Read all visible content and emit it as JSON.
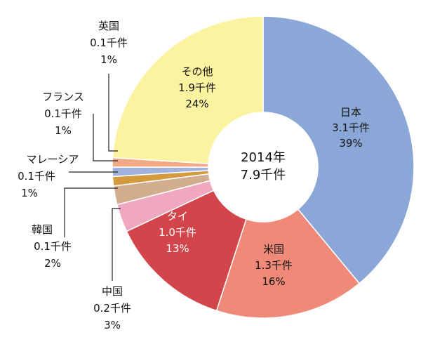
{
  "chart_data": {
    "type": "pie",
    "style": "donut",
    "center_label": {
      "year": "2014年",
      "total": "7.9千件"
    },
    "slices": [
      {
        "name": "日本",
        "value_label": "3.1千件",
        "percent": 39,
        "percent_label": "39%",
        "color": "#8BA7D7"
      },
      {
        "name": "米国",
        "value_label": "1.3千件",
        "percent": 16,
        "percent_label": "16%",
        "color": "#EF8A78"
      },
      {
        "name": "タイ",
        "value_label": "1.0千件",
        "percent": 13,
        "percent_label": "13%",
        "color": "#D2454B"
      },
      {
        "name": "中国",
        "value_label": "0.2千件",
        "percent": 3,
        "percent_label": "3%",
        "color": "#F0A7C0"
      },
      {
        "name": "韓国",
        "value_label": "0.1千件",
        "percent": 2,
        "percent_label": "2%",
        "color": "#D2AE8F"
      },
      {
        "name": "マレーシア",
        "value_label": "0.1千件",
        "percent": 1,
        "percent_label": "1%",
        "color": "#D49A3E"
      },
      {
        "name": "フランス",
        "value_label": "0.1千件",
        "percent": 1,
        "percent_label": "1%",
        "color": "#9FB3DD"
      },
      {
        "name": "英国",
        "value_label": "0.1千件",
        "percent": 1,
        "percent_label": "1%",
        "color": "#F4AA86"
      },
      {
        "name": "その他",
        "value_label": "1.9千件",
        "percent": 24,
        "percent_label": "24%",
        "color": "#FBF3A0"
      }
    ]
  }
}
